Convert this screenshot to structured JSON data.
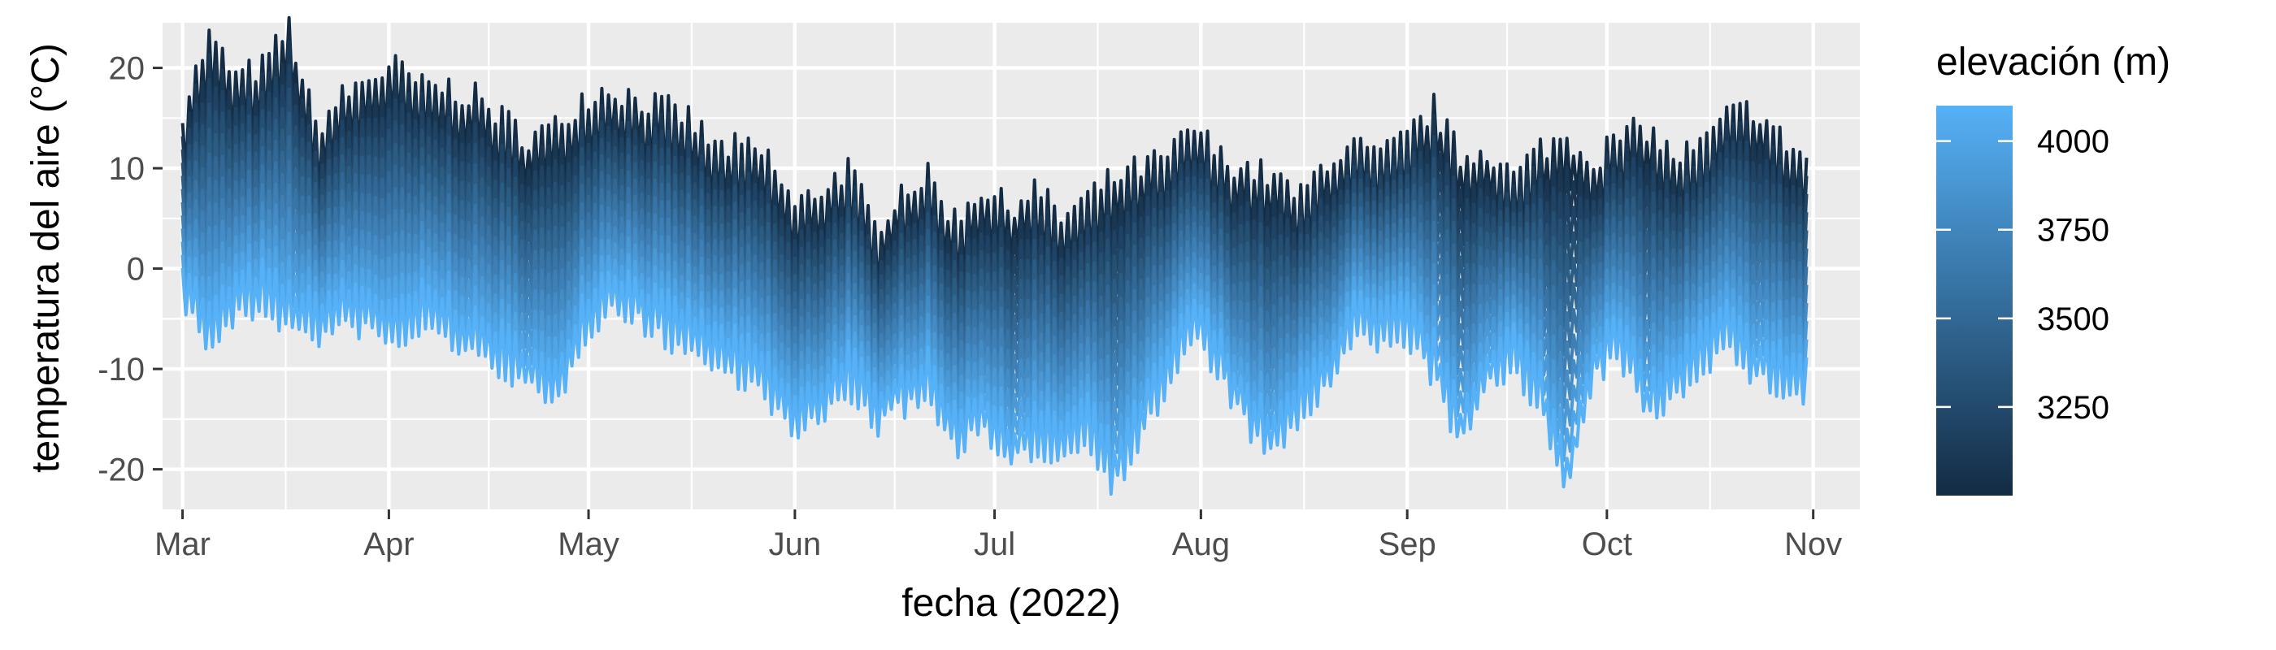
{
  "chart_data": {
    "type": "line",
    "title": "",
    "xlabel": "fecha (2022)",
    "ylabel": "temperatura del aire (°C)",
    "x_range": [
      "2022-02-26",
      "2022-11-08"
    ],
    "ylim": [
      -24,
      24.5
    ],
    "grid": true,
    "x_ticks": [
      {
        "date": "2022-03-01",
        "label": "Mar"
      },
      {
        "date": "2022-04-01",
        "label": "Apr"
      },
      {
        "date": "2022-05-01",
        "label": "May"
      },
      {
        "date": "2022-06-01",
        "label": "Jun"
      },
      {
        "date": "2022-07-01",
        "label": "Jul"
      },
      {
        "date": "2022-08-01",
        "label": "Aug"
      },
      {
        "date": "2022-09-01",
        "label": "Sep"
      },
      {
        "date": "2022-10-01",
        "label": "Oct"
      },
      {
        "date": "2022-11-01",
        "label": "Nov"
      }
    ],
    "y_ticks": [
      -20,
      -10,
      0,
      10,
      20
    ],
    "legend": {
      "title": "elevación (m)",
      "placement": "right",
      "type": "colorbar",
      "range": [
        3000,
        4100
      ],
      "ticks": [
        3250,
        3500,
        3750,
        4000
      ],
      "color_low": "#132B43",
      "color_high": "#56B1F7"
    },
    "series": [
      {
        "elevation": 3000,
        "x": [
          "2022-03-01",
          "2022-03-05",
          "2022-03-09",
          "2022-03-13",
          "2022-03-17",
          "2022-03-21",
          "2022-03-25",
          "2022-03-29",
          "2022-04-02",
          "2022-04-06",
          "2022-04-10",
          "2022-04-14",
          "2022-04-18",
          "2022-04-22",
          "2022-04-26",
          "2022-04-30",
          "2022-05-04",
          "2022-05-08",
          "2022-05-12",
          "2022-05-16",
          "2022-05-20",
          "2022-05-24",
          "2022-05-28",
          "2022-06-01",
          "2022-06-05",
          "2022-06-09",
          "2022-06-13",
          "2022-06-17",
          "2022-06-21",
          "2022-06-25",
          "2022-06-29",
          "2022-07-03",
          "2022-07-07",
          "2022-07-11",
          "2022-07-15",
          "2022-07-19",
          "2022-07-23",
          "2022-07-27",
          "2022-07-31",
          "2022-08-04",
          "2022-08-08",
          "2022-08-12",
          "2022-08-16",
          "2022-08-20",
          "2022-08-24",
          "2022-08-28",
          "2022-09-01",
          "2022-09-05",
          "2022-09-09",
          "2022-09-13",
          "2022-09-17",
          "2022-09-21",
          "2022-09-25",
          "2022-09-29",
          "2022-10-03",
          "2022-10-07",
          "2022-10-11",
          "2022-10-15",
          "2022-10-19",
          "2022-10-23",
          "2022-10-27",
          "2022-10-31"
        ],
        "y": [
          13,
          20,
          16,
          17,
          21,
          11,
          14,
          16,
          17,
          15,
          15,
          14,
          12,
          10,
          11,
          14,
          15,
          14,
          13,
          12,
          9,
          9,
          8,
          3,
          5,
          7,
          1,
          5,
          6,
          2,
          5,
          3,
          5,
          2,
          4,
          6,
          7,
          8,
          11,
          8,
          7,
          6,
          4,
          8,
          9,
          8,
          10,
          13,
          8,
          9,
          6,
          9,
          10,
          8,
          10,
          11,
          8,
          9,
          12,
          13,
          10,
          8
        ]
      },
      {
        "elevation": 4100,
        "x": [
          "2022-03-01",
          "2022-03-05",
          "2022-03-09",
          "2022-03-13",
          "2022-03-17",
          "2022-03-21",
          "2022-03-25",
          "2022-03-29",
          "2022-04-02",
          "2022-04-06",
          "2022-04-10",
          "2022-04-14",
          "2022-04-18",
          "2022-04-22",
          "2022-04-26",
          "2022-04-30",
          "2022-05-04",
          "2022-05-08",
          "2022-05-12",
          "2022-05-16",
          "2022-05-20",
          "2022-05-24",
          "2022-05-28",
          "2022-06-01",
          "2022-06-05",
          "2022-06-09",
          "2022-06-13",
          "2022-06-17",
          "2022-06-21",
          "2022-06-25",
          "2022-06-29",
          "2022-07-03",
          "2022-07-07",
          "2022-07-11",
          "2022-07-15",
          "2022-07-19",
          "2022-07-23",
          "2022-07-27",
          "2022-07-31",
          "2022-08-04",
          "2022-08-08",
          "2022-08-12",
          "2022-08-16",
          "2022-08-20",
          "2022-08-24",
          "2022-08-28",
          "2022-09-01",
          "2022-09-05",
          "2022-09-09",
          "2022-09-13",
          "2022-09-17",
          "2022-09-21",
          "2022-09-25",
          "2022-09-29",
          "2022-10-03",
          "2022-10-07",
          "2022-10-11",
          "2022-10-15",
          "2022-10-19",
          "2022-10-23",
          "2022-10-27",
          "2022-10-31"
        ],
        "y": [
          -1,
          -6,
          -3,
          -2,
          -4,
          -5,
          -4,
          -4,
          -6,
          -4,
          -5,
          -7,
          -8,
          -10,
          -12,
          -5,
          -2,
          -3,
          -5,
          -6,
          -8,
          -9,
          -11,
          -15,
          -13,
          -10,
          -14,
          -12,
          -11,
          -16,
          -14,
          -18,
          -16,
          -17,
          -15,
          -20,
          -15,
          -10,
          -5,
          -9,
          -14,
          -17,
          -13,
          -10,
          -5,
          -6,
          -5,
          -9,
          -16,
          -10,
          -8,
          -12,
          -21,
          -9,
          -7,
          -13,
          -11,
          -8,
          -6,
          -9,
          -10,
          -11
        ]
      }
    ]
  }
}
